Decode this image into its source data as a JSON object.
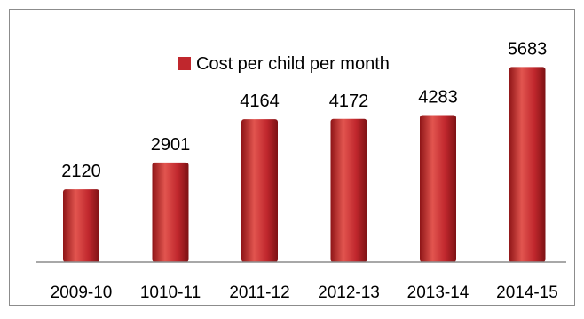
{
  "chart_data": {
    "type": "bar",
    "title": "",
    "xlabel": "",
    "ylabel": "",
    "categories": [
      "2009-10",
      "1010-11",
      "2011-12",
      "2012-13",
      "2013-14",
      "2014-15"
    ],
    "series": [
      {
        "name": "Cost per child per month",
        "values": [
          2120,
          2901,
          4164,
          4172,
          4283,
          5683
        ]
      }
    ],
    "ylim": [
      0,
      6600
    ],
    "grid": false,
    "legend_position": "top-center",
    "data_labels": true,
    "bar_color": "#c0272d",
    "bar_highlight": "#e2554f",
    "axis_color": "#8c8c8c",
    "border_color": "#8c8c8c"
  }
}
